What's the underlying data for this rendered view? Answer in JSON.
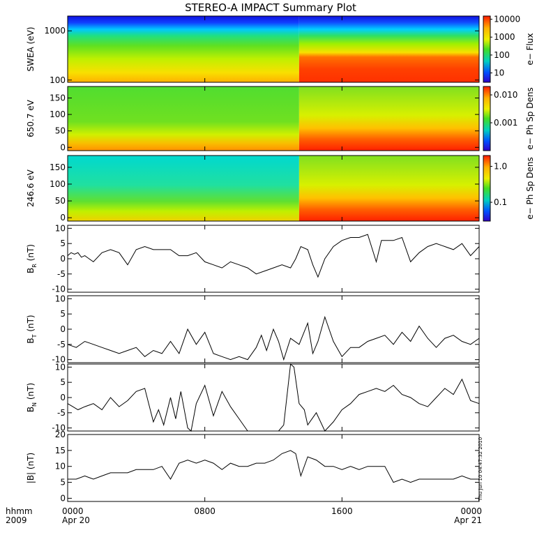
{
  "title": "STEREO-A IMPACT Summary Plot",
  "timestamp": "Thu Jun 10 04:47:32 2010",
  "time_axis": {
    "range_hours": [
      0,
      24
    ],
    "corner_labels": [
      "hhmm",
      "2009"
    ],
    "ticks": [
      {
        "hour": 0,
        "label": "0000",
        "date": "Apr 20"
      },
      {
        "hour": 8,
        "label": "0800",
        "date": ""
      },
      {
        "hour": 16,
        "label": "1600",
        "date": ""
      },
      {
        "hour": 24,
        "label": "0000",
        "date": "Apr 21"
      }
    ]
  },
  "chart_data": [
    {
      "type": "heatmap",
      "id": "swea",
      "ylabel": "SWEA (eV)",
      "yscale": "log",
      "ylim": [
        90,
        2000
      ],
      "yticks": [
        {
          "v": 1000,
          "label": "1000"
        },
        {
          "v": 100,
          "label": "100"
        }
      ],
      "colorbar": {
        "label": "e− Flux",
        "scale": "log",
        "range": [
          3,
          15000
        ],
        "ticks": [
          {
            "v": 10000,
            "label": "10000"
          },
          {
            "v": 1000,
            "label": "1000"
          },
          {
            "v": 100,
            "label": "100"
          },
          {
            "v": 10,
            "label": "10"
          }
        ]
      }
    },
    {
      "type": "heatmap",
      "id": "pad650",
      "ylabel": "650.7 eV",
      "yscale": "linear",
      "ylim": [
        -10,
        185
      ],
      "yticks": [
        {
          "v": 150,
          "label": "150"
        },
        {
          "v": 100,
          "label": "100"
        },
        {
          "v": 50,
          "label": "50"
        },
        {
          "v": 0,
          "label": "0"
        }
      ],
      "colorbar": {
        "label": "e− Ph Sp Dens",
        "scale": "log",
        "range": [
          0.0001,
          0.02
        ],
        "ticks": [
          {
            "v": 0.01,
            "label": "0.010"
          },
          {
            "v": 0.001,
            "label": "0.001"
          }
        ]
      }
    },
    {
      "type": "heatmap",
      "id": "pad246",
      "ylabel": "246.6 eV",
      "yscale": "linear",
      "ylim": [
        -10,
        185
      ],
      "yticks": [
        {
          "v": 150,
          "label": "150"
        },
        {
          "v": 100,
          "label": "100"
        },
        {
          "v": 50,
          "label": "50"
        },
        {
          "v": 0,
          "label": "0"
        }
      ],
      "colorbar": {
        "label": "e− Ph Sp Dens",
        "scale": "log",
        "range": [
          0.03,
          2.0
        ],
        "ticks": [
          {
            "v": 1.0,
            "label": "1.0"
          },
          {
            "v": 0.1,
            "label": "0.1"
          }
        ]
      }
    },
    {
      "type": "line",
      "id": "br",
      "ylabel_main": "B",
      "ylabel_sub": "R",
      "ylabel_unit": " (nT)",
      "ylim": [
        -11,
        11
      ],
      "yticks": [
        {
          "v": 10,
          "label": "10"
        },
        {
          "v": 5,
          "label": "5"
        },
        {
          "v": 0,
          "label": "0"
        },
        {
          "v": -5,
          "label": "-5"
        },
        {
          "v": -10,
          "label": "-10"
        }
      ],
      "x": [
        0,
        0.2,
        0.4,
        0.6,
        0.8,
        1,
        1.5,
        2,
        2.5,
        3,
        3.5,
        4,
        4.5,
        5,
        5.5,
        6,
        6.5,
        7,
        7.5,
        8,
        8.5,
        9,
        9.5,
        10,
        10.5,
        11,
        11.5,
        12,
        12.5,
        13,
        13.3,
        13.6,
        14,
        14.3,
        14.6,
        15,
        15.5,
        16,
        16.5,
        17,
        17.5,
        18,
        18.3,
        18.6,
        19,
        19.5,
        20,
        20.5,
        21,
        21.5,
        22,
        22.5,
        23,
        23.5,
        24
      ],
      "values": [
        1,
        2,
        1.5,
        2,
        0.5,
        1,
        -1,
        2,
        3,
        2,
        -2,
        3,
        4,
        3,
        3,
        3,
        1,
        1,
        2,
        -1,
        -2,
        -3,
        -1,
        -2,
        -3,
        -5,
        -4,
        -3,
        -2,
        -3,
        0,
        4,
        3,
        -2,
        -6,
        0,
        4,
        6,
        7,
        7,
        8,
        -1,
        6,
        6,
        6,
        7,
        -1,
        2,
        4,
        5,
        4,
        3,
        5,
        1,
        4
      ]
    },
    {
      "type": "line",
      "id": "bt",
      "ylabel_main": "B",
      "ylabel_sub": "T",
      "ylabel_unit": " (nT)",
      "ylim": [
        -11,
        11
      ],
      "yticks": [
        {
          "v": 10,
          "label": "10"
        },
        {
          "v": 5,
          "label": "5"
        },
        {
          "v": 0,
          "label": "0"
        },
        {
          "v": -5,
          "label": "-5"
        },
        {
          "v": -10,
          "label": "-10"
        }
      ],
      "x": [
        0,
        0.5,
        1,
        1.5,
        2,
        2.5,
        3,
        3.5,
        4,
        4.5,
        5,
        5.5,
        6,
        6.5,
        7,
        7.5,
        8,
        8.5,
        9,
        9.5,
        10,
        10.5,
        11,
        11.3,
        11.6,
        12,
        12.3,
        12.6,
        13,
        13.5,
        14,
        14.3,
        14.6,
        15,
        15.5,
        16,
        16.5,
        17,
        17.5,
        18,
        18.5,
        19,
        19.5,
        20,
        20.5,
        21,
        21.5,
        22,
        22.5,
        23,
        23.5,
        24
      ],
      "values": [
        -5,
        -6,
        -4,
        -5,
        -6,
        -7,
        -8,
        -7,
        -6,
        -9,
        -7,
        -8,
        -4,
        -8,
        0,
        -5,
        -1,
        -8,
        -9,
        -10,
        -9,
        -10,
        -6,
        -2,
        -7,
        0,
        -4,
        -10,
        -3,
        -5,
        2,
        -8,
        -4,
        4,
        -4,
        -9,
        -6,
        -6,
        -4,
        -3,
        -2,
        -5,
        -1,
        -4,
        1,
        -3,
        -6,
        -3,
        -2,
        -4,
        -5,
        -3
      ]
    },
    {
      "type": "line",
      "id": "bn",
      "ylabel_main": "B",
      "ylabel_sub": "N",
      "ylabel_unit": " (nT)",
      "ylim": [
        -11,
        11
      ],
      "yticks": [
        {
          "v": 10,
          "label": "10"
        },
        {
          "v": 5,
          "label": "5"
        },
        {
          "v": 0,
          "label": "0"
        },
        {
          "v": -5,
          "label": "-5"
        },
        {
          "v": -10,
          "label": "-10"
        }
      ],
      "x": [
        0,
        0.3,
        0.6,
        1,
        1.5,
        2,
        2.5,
        3,
        3.5,
        4,
        4.5,
        5,
        5.3,
        5.6,
        6,
        6.3,
        6.6,
        7,
        7.2,
        7.5,
        8,
        8.5,
        9,
        9.5,
        10,
        10.5,
        11,
        11.5,
        12,
        12.3,
        12.6,
        13,
        13.2,
        13.5,
        13.8,
        14,
        14.5,
        15,
        15.5,
        16,
        16.5,
        17,
        17.5,
        18,
        18.5,
        19,
        19.5,
        20,
        20.5,
        21,
        21.5,
        22,
        22.5,
        23,
        23.5,
        24
      ],
      "values": [
        -2,
        -3,
        -4,
        -3,
        -2,
        -4,
        0,
        -3,
        -1,
        2,
        3,
        -8,
        -4,
        -9,
        0,
        -7,
        2,
        -10,
        -11,
        -2,
        4,
        -6,
        2,
        -3,
        -7,
        -11,
        -11,
        -11,
        -11,
        -11,
        -9,
        11,
        10,
        -2,
        -4,
        -9,
        -5,
        -11,
        -8,
        -4,
        -2,
        1,
        2,
        3,
        2,
        4,
        1,
        0,
        -2,
        -3,
        0,
        3,
        1,
        6,
        -1,
        -2
      ]
    },
    {
      "type": "line",
      "id": "bmag",
      "ylabel_main": "|B|",
      "ylabel_sub": "",
      "ylabel_unit": " (nT)",
      "ylim": [
        -1,
        20
      ],
      "yticks": [
        {
          "v": 20,
          "label": "20"
        },
        {
          "v": 15,
          "label": "15"
        },
        {
          "v": 10,
          "label": "10"
        },
        {
          "v": 5,
          "label": "5"
        },
        {
          "v": 0,
          "label": "0"
        }
      ],
      "x": [
        0,
        0.5,
        1,
        1.5,
        2,
        2.5,
        3,
        3.5,
        4,
        4.5,
        5,
        5.5,
        6,
        6.5,
        7,
        7.5,
        8,
        8.5,
        9,
        9.5,
        10,
        10.5,
        11,
        11.5,
        12,
        12.5,
        13,
        13.3,
        13.6,
        14,
        14.5,
        15,
        15.5,
        16,
        16.5,
        17,
        17.5,
        18,
        18.5,
        19,
        19.5,
        20,
        20.5,
        21,
        21.5,
        22,
        22.5,
        23,
        23.5,
        24
      ],
      "values": [
        6,
        6,
        7,
        6,
        7,
        8,
        8,
        8,
        9,
        9,
        9,
        10,
        6,
        11,
        12,
        11,
        12,
        11,
        9,
        11,
        10,
        10,
        11,
        11,
        12,
        14,
        15,
        14,
        7,
        13,
        12,
        10,
        10,
        9,
        10,
        9,
        10,
        10,
        10,
        5,
        6,
        5,
        6,
        6,
        6,
        6,
        6,
        7,
        6,
        6
      ]
    }
  ]
}
